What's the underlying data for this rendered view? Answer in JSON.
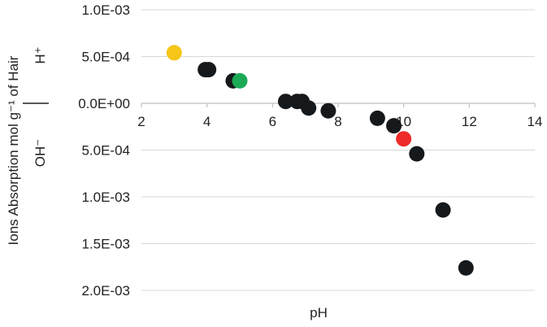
{
  "chart_data": {
    "type": "scatter",
    "title": "",
    "xlabel": "pH",
    "ylabel": "Ions Absorption mol g⁻¹ of Hair",
    "ylabel_upper": "H⁺",
    "ylabel_lower": "OH⁻",
    "xlim": [
      2,
      14
    ],
    "ylim": [
      -0.002,
      0.001
    ],
    "x_ticks": [
      2,
      4,
      6,
      8,
      10,
      12,
      14
    ],
    "x_tick_labels": [
      "2",
      "4",
      "6",
      "8",
      "10",
      "12",
      "14"
    ],
    "y_ticks": [
      0.001,
      0.0005,
      0,
      -0.0005,
      -0.001,
      -0.0015,
      -0.002
    ],
    "y_tick_labels": [
      "1.0E-03",
      "5.0E-04",
      "0.0E+00",
      "5.0E-04",
      "1.0E-03",
      "1.5E-03",
      "2.0E-03"
    ],
    "grid": "horizontal",
    "legend": "none",
    "colors": {
      "default": "#16191c",
      "highlight_ph3": "#f5c518",
      "highlight_ph5": "#1aaa55",
      "highlight_ph10": "#ee2a2a",
      "grid": "#d9d9d9",
      "axis": "#bfbfbf"
    },
    "points": [
      {
        "x": 3.0,
        "y": 0.00054,
        "color": "#f5c518"
      },
      {
        "x": 3.95,
        "y": 0.00036,
        "color": "#16191c"
      },
      {
        "x": 4.05,
        "y": 0.00036,
        "color": "#16191c"
      },
      {
        "x": 4.8,
        "y": 0.00024,
        "color": "#16191c"
      },
      {
        "x": 5.0,
        "y": 0.00024,
        "color": "#1aaa55"
      },
      {
        "x": 6.4,
        "y": 2e-05,
        "color": "#16191c"
      },
      {
        "x": 6.75,
        "y": 2e-05,
        "color": "#16191c"
      },
      {
        "x": 6.9,
        "y": 2e-05,
        "color": "#16191c"
      },
      {
        "x": 7.1,
        "y": -5e-05,
        "color": "#16191c"
      },
      {
        "x": 7.7,
        "y": -8e-05,
        "color": "#16191c"
      },
      {
        "x": 9.2,
        "y": -0.00016,
        "color": "#16191c"
      },
      {
        "x": 9.7,
        "y": -0.00024,
        "color": "#16191c"
      },
      {
        "x": 10.0,
        "y": -0.00038,
        "color": "#ee2a2a"
      },
      {
        "x": 10.4,
        "y": -0.00054,
        "color": "#16191c"
      },
      {
        "x": 11.2,
        "y": -0.00114,
        "color": "#16191c"
      },
      {
        "x": 11.9,
        "y": -0.00176,
        "color": "#16191c"
      }
    ]
  }
}
